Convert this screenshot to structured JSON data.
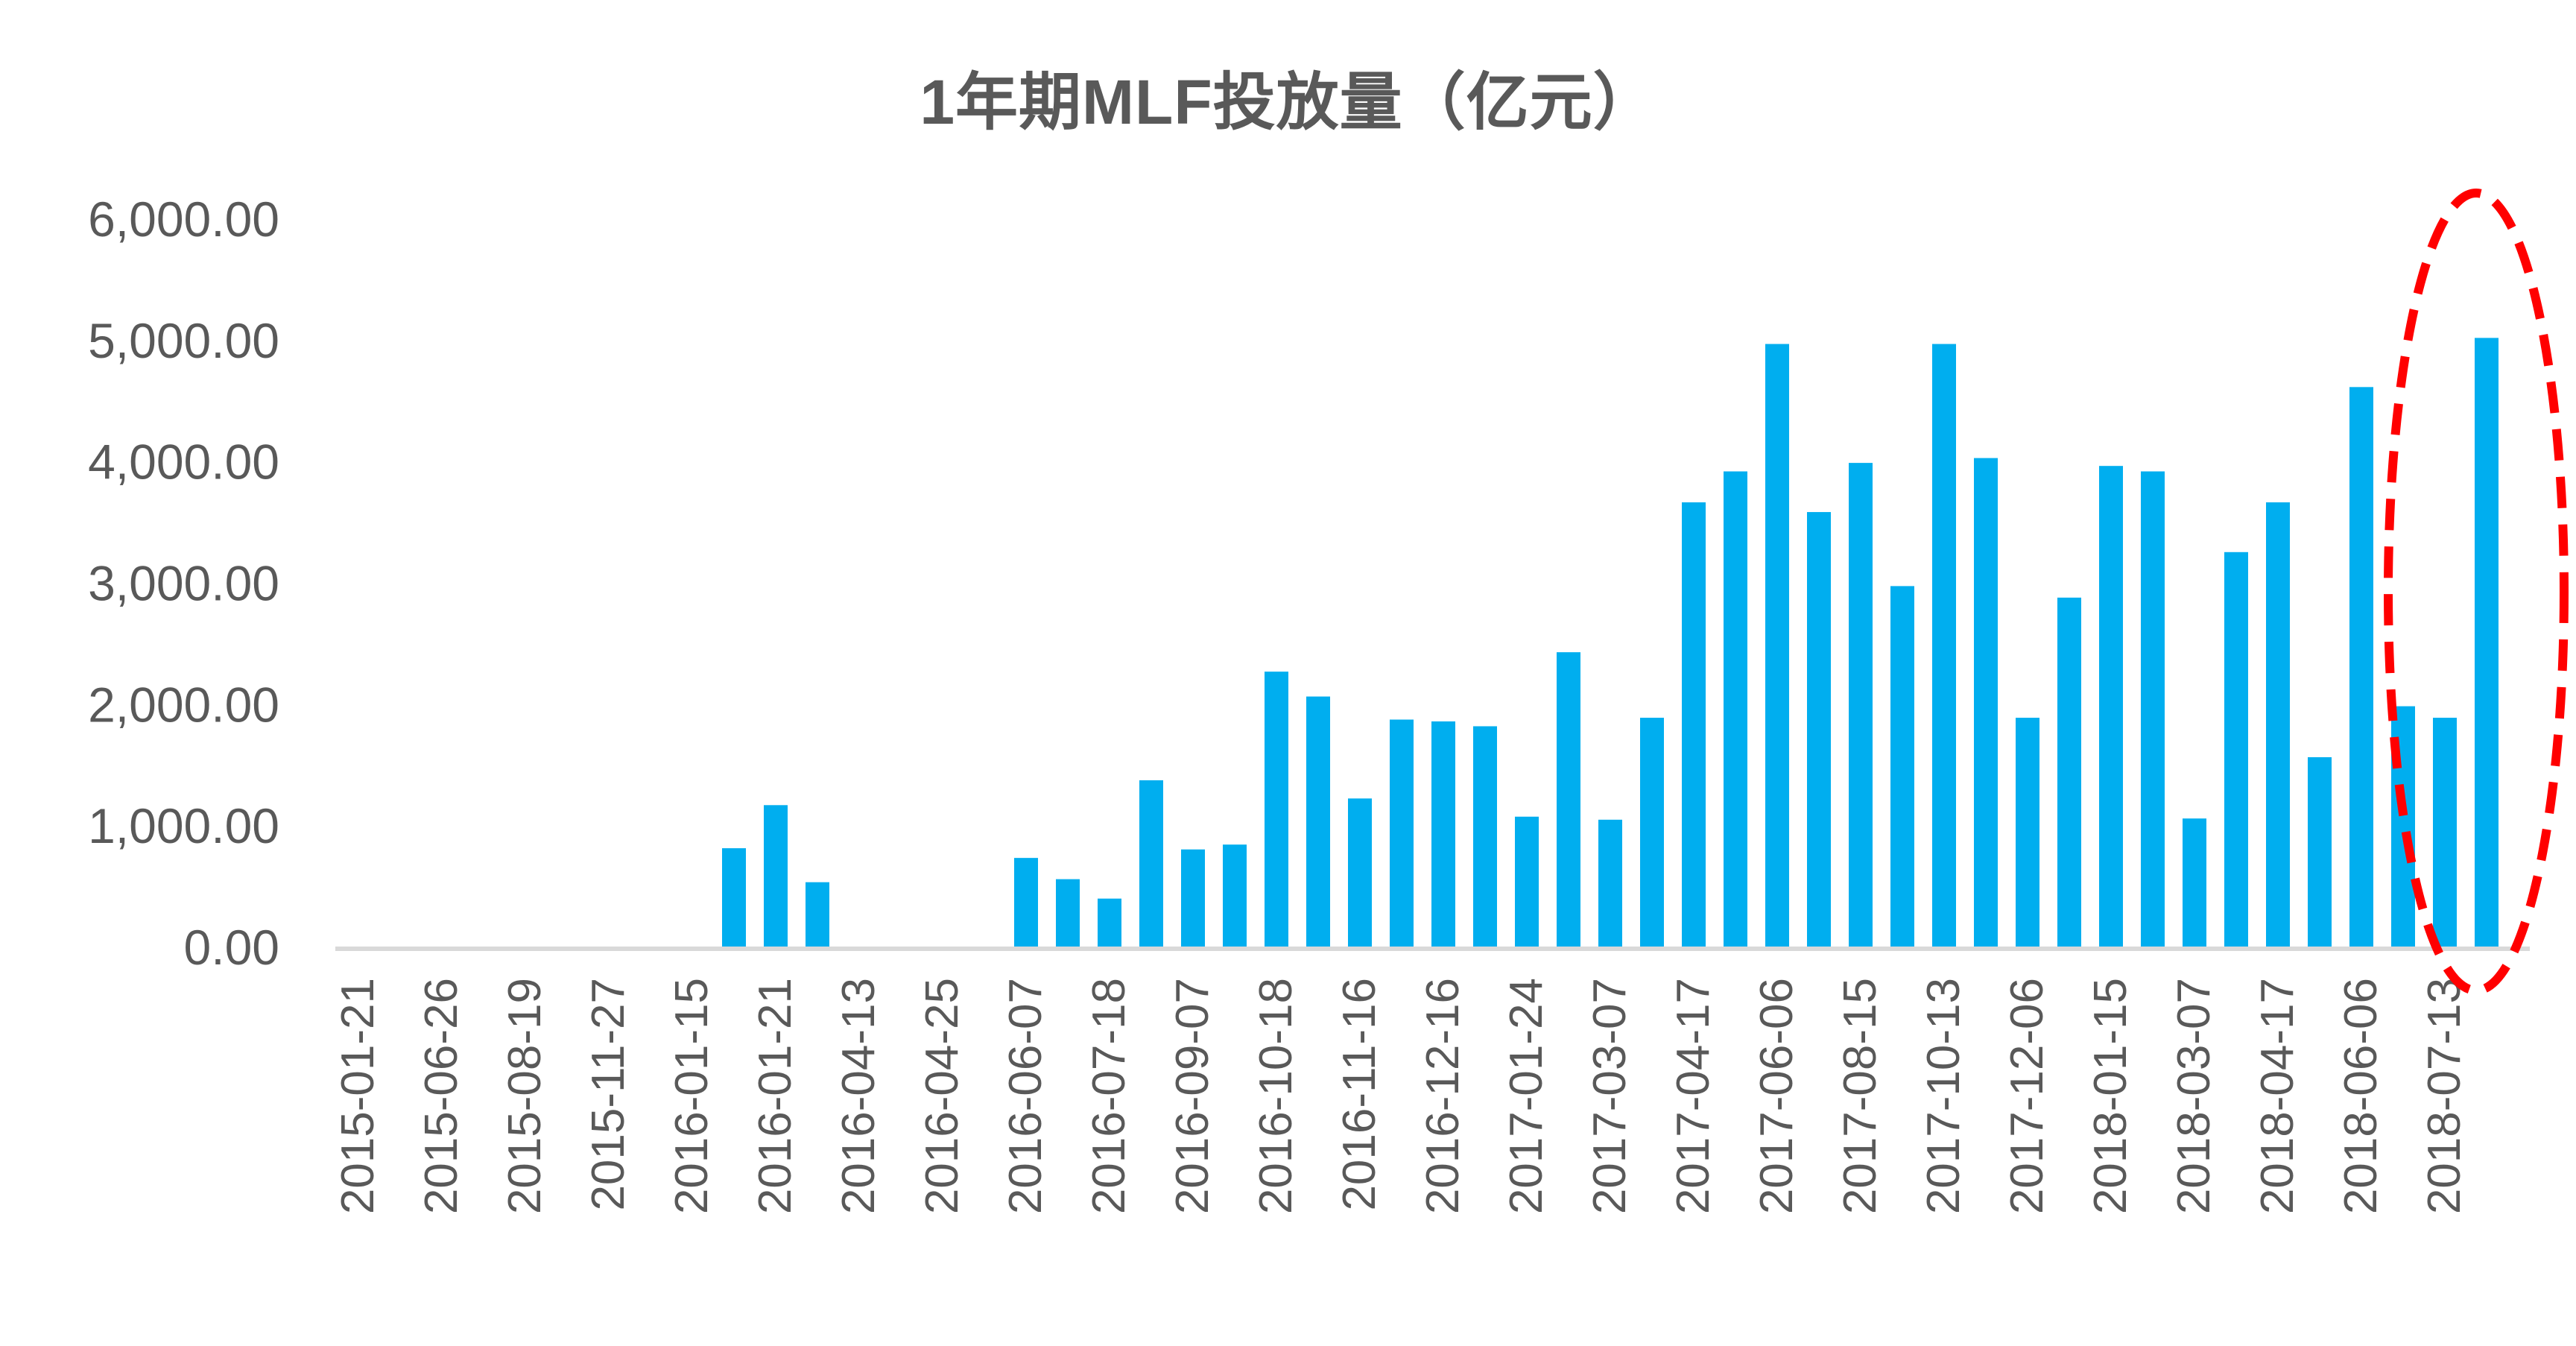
{
  "chart_data": {
    "type": "bar",
    "title": "1年期MLF投放量（亿元）",
    "xlabel": "",
    "ylabel": "",
    "ylim": [
      0,
      6000
    ],
    "yticks": [
      0,
      1000,
      2000,
      3000,
      4000,
      5000,
      6000
    ],
    "ytick_labels": [
      "0.00",
      "1,000.00",
      "2,000.00",
      "3,000.00",
      "4,000.00",
      "5,000.00",
      "6,000.00"
    ],
    "grid": false,
    "legend": null,
    "bar_color": "#00AEEF",
    "axis_color": "#D9D9D9",
    "text_color": "#595959",
    "x_tick_labels": [
      "2015-01-21",
      "2015-06-26",
      "2015-08-19",
      "2015-11-27",
      "2016-01-15",
      "2016-01-21",
      "2016-04-13",
      "2016-04-25",
      "2016-06-07",
      "2016-07-18",
      "2016-09-07",
      "2016-10-18",
      "2016-11-16",
      "2016-12-16",
      "2017-01-24",
      "2017-03-07",
      "2017-04-17",
      "2017-06-06",
      "2017-08-15",
      "2017-10-13",
      "2017-12-06",
      "2018-01-15",
      "2018-03-07",
      "2018-04-17",
      "2018-06-06",
      "2018-07-13"
    ],
    "x_tick_every": 2,
    "slot_count": 52,
    "values": [
      0,
      0,
      0,
      0,
      0,
      0,
      0,
      0,
      0,
      810,
      1165,
      530,
      0,
      0,
      0,
      0,
      730,
      555,
      395,
      1370,
      800,
      840,
      2265,
      2060,
      1220,
      1870,
      1855,
      1815,
      1070,
      2425,
      1045,
      1885,
      3660,
      3915,
      4965,
      3580,
      3985,
      2970,
      4965,
      4025,
      1885,
      2875,
      3960,
      3915,
      1055,
      3250,
      3660,
      1560,
      4610,
      1980,
      1885,
      5015
    ],
    "annotations": [
      {
        "type": "dashed-ellipse",
        "color": "#FF0000",
        "target_slots": [
          49,
          51
        ],
        "description": "highlight of latest bars"
      }
    ]
  },
  "header": {
    "title": "1年期MLF投放量（亿元）"
  }
}
